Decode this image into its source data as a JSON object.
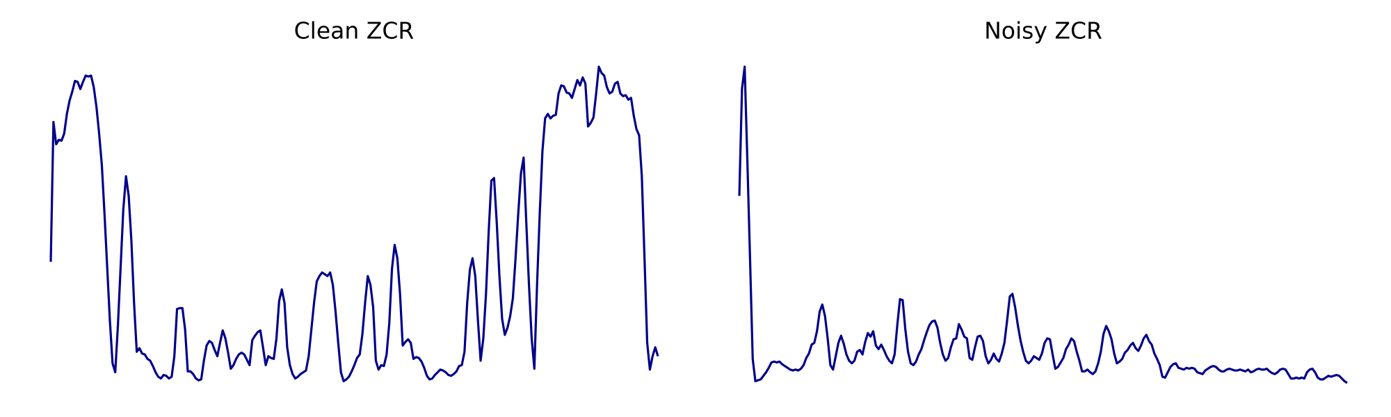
{
  "chart_data": [
    {
      "type": "line",
      "title": "Clean ZCR",
      "color": "#00008b",
      "values": [
        0.146,
        0.303,
        0.278,
        0.283,
        0.282,
        0.29,
        0.312,
        0.327,
        0.337,
        0.349,
        0.348,
        0.34,
        0.348,
        0.355,
        0.354,
        0.355,
        0.342,
        0.32,
        0.29,
        0.255,
        0.2,
        0.14,
        0.08,
        0.032,
        0.022,
        0.075,
        0.14,
        0.205,
        0.242,
        0.22,
        0.17,
        0.1,
        0.045,
        0.049,
        0.043,
        0.042,
        0.037,
        0.035,
        0.029,
        0.022,
        0.017,
        0.015,
        0.019,
        0.018,
        0.015,
        0.017,
        0.04,
        0.093,
        0.094,
        0.094,
        0.07,
        0.023,
        0.023,
        0.02,
        0.015,
        0.013,
        0.014,
        0.035,
        0.052,
        0.057,
        0.055,
        0.047,
        0.04,
        0.055,
        0.069,
        0.06,
        0.044,
        0.026,
        0.03,
        0.037,
        0.042,
        0.044,
        0.042,
        0.036,
        0.03,
        0.058,
        0.063,
        0.067,
        0.069,
        0.05,
        0.03,
        0.04,
        0.038,
        0.037,
        0.06,
        0.102,
        0.115,
        0.1,
        0.05,
        0.03,
        0.02,
        0.015,
        0.017,
        0.02,
        0.022,
        0.024,
        0.04,
        0.07,
        0.1,
        0.124,
        0.13,
        0.134,
        0.132,
        0.13,
        0.134,
        0.12,
        0.09,
        0.055,
        0.022,
        0.012,
        0.014,
        0.017,
        0.023,
        0.03,
        0.038,
        0.042,
        0.065,
        0.1,
        0.13,
        0.12,
        0.095,
        0.035,
        0.025,
        0.03,
        0.029,
        0.042,
        0.077,
        0.138,
        0.165,
        0.15,
        0.11,
        0.052,
        0.056,
        0.059,
        0.055,
        0.037,
        0.039,
        0.038,
        0.034,
        0.027,
        0.018,
        0.014,
        0.015,
        0.019,
        0.022,
        0.025,
        0.024,
        0.022,
        0.019,
        0.018,
        0.02,
        0.023,
        0.029,
        0.03,
        0.045,
        0.1,
        0.137,
        0.15,
        0.13,
        0.08,
        0.035,
        0.06,
        0.11,
        0.18,
        0.237,
        0.24,
        0.19,
        0.13,
        0.082,
        0.064,
        0.072,
        0.085,
        0.105,
        0.15,
        0.2,
        0.245,
        0.263,
        0.19,
        0.12,
        0.06,
        0.026,
        0.12,
        0.2,
        0.27,
        0.307,
        0.312,
        0.307,
        0.31,
        0.311,
        0.335,
        0.344,
        0.343,
        0.336,
        0.335,
        0.33,
        0.34,
        0.35,
        0.344,
        0.353,
        0.346,
        0.298,
        0.302,
        0.308,
        0.335,
        0.365,
        0.358,
        0.355,
        0.342,
        0.335,
        0.337,
        0.346,
        0.348,
        0.335,
        0.332,
        0.333,
        0.328,
        0.33,
        0.31,
        0.295,
        0.288,
        0.242,
        0.15,
        0.055,
        0.025,
        0.04,
        0.05,
        0.04
      ]
    },
    {
      "type": "line",
      "title": "Noisy ZCR",
      "color": "#00008b",
      "values": [
        0.22,
        0.34,
        0.365,
        0.26,
        0.15,
        0.037,
        0.012,
        0.013,
        0.014,
        0.018,
        0.022,
        0.027,
        0.033,
        0.034,
        0.033,
        0.034,
        0.031,
        0.029,
        0.027,
        0.025,
        0.024,
        0.025,
        0.024,
        0.026,
        0.03,
        0.038,
        0.043,
        0.053,
        0.055,
        0.068,
        0.09,
        0.098,
        0.085,
        0.06,
        0.03,
        0.025,
        0.04,
        0.055,
        0.063,
        0.054,
        0.042,
        0.035,
        0.032,
        0.035,
        0.045,
        0.047,
        0.042,
        0.056,
        0.066,
        0.062,
        0.068,
        0.052,
        0.048,
        0.053,
        0.047,
        0.04,
        0.035,
        0.032,
        0.042,
        0.075,
        0.104,
        0.103,
        0.07,
        0.045,
        0.032,
        0.03,
        0.034,
        0.042,
        0.048,
        0.058,
        0.067,
        0.075,
        0.079,
        0.08,
        0.072,
        0.055,
        0.042,
        0.035,
        0.038,
        0.05,
        0.059,
        0.06,
        0.076,
        0.07,
        0.062,
        0.06,
        0.038,
        0.036,
        0.05,
        0.062,
        0.063,
        0.057,
        0.04,
        0.032,
        0.036,
        0.043,
        0.037,
        0.034,
        0.043,
        0.055,
        0.08,
        0.107,
        0.11,
        0.095,
        0.075,
        0.058,
        0.045,
        0.035,
        0.032,
        0.035,
        0.04,
        0.038,
        0.036,
        0.043,
        0.055,
        0.06,
        0.059,
        0.042,
        0.026,
        0.028,
        0.033,
        0.038,
        0.048,
        0.053,
        0.06,
        0.057,
        0.045,
        0.035,
        0.023,
        0.023,
        0.025,
        0.022,
        0.02,
        0.023,
        0.032,
        0.045,
        0.065,
        0.074,
        0.068,
        0.059,
        0.043,
        0.032,
        0.034,
        0.037,
        0.044,
        0.047,
        0.052,
        0.055,
        0.049,
        0.046,
        0.052,
        0.06,
        0.064,
        0.057,
        0.053,
        0.043,
        0.037,
        0.03,
        0.017,
        0.016,
        0.022,
        0.028,
        0.031,
        0.032,
        0.027,
        0.026,
        0.025,
        0.027,
        0.026,
        0.027,
        0.026,
        0.022,
        0.021,
        0.02,
        0.024,
        0.026,
        0.028,
        0.029,
        0.028,
        0.025,
        0.023,
        0.023,
        0.025,
        0.026,
        0.025,
        0.024,
        0.024,
        0.025,
        0.024,
        0.023,
        0.025,
        0.022,
        0.023,
        0.025,
        0.026,
        0.025,
        0.025,
        0.026,
        0.023,
        0.021,
        0.02,
        0.022,
        0.025,
        0.026,
        0.025,
        0.02,
        0.015,
        0.015,
        0.016,
        0.015,
        0.016,
        0.015,
        0.022,
        0.025,
        0.026,
        0.022,
        0.016,
        0.014,
        0.014,
        0.016,
        0.018,
        0.017,
        0.018,
        0.019,
        0.018,
        0.015,
        0.012,
        0.01
      ]
    }
  ]
}
